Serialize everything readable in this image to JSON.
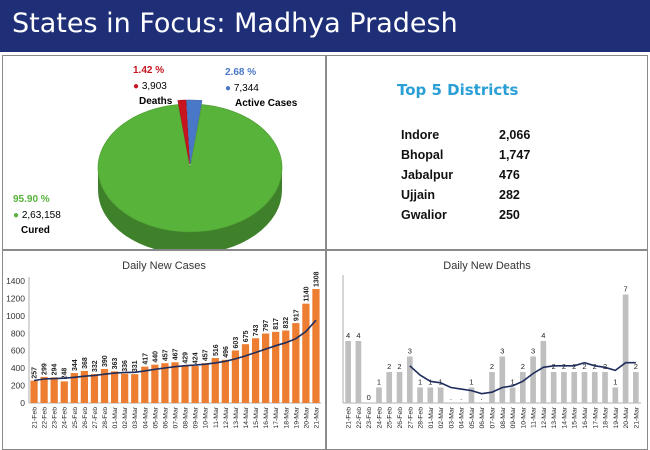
{
  "header": {
    "title": "States in Focus: Madhya Pradesh"
  },
  "pie": {
    "slices": [
      {
        "name": "Cured",
        "pct": "95.90 %",
        "count": "2,63,158",
        "value": 95.9,
        "color": "#58b33a"
      },
      {
        "name": "Deaths",
        "pct": "1.42 %",
        "count": "3,903",
        "value": 1.42,
        "color": "#c8141e"
      },
      {
        "name": "Active Cases",
        "pct": "2.68 %",
        "count": "7,344",
        "value": 2.68,
        "color": "#4a78c8"
      }
    ]
  },
  "top_districts": {
    "title": "Top 5 Districts",
    "rows": [
      {
        "name": "Indore",
        "value": "2,066"
      },
      {
        "name": "Bhopal",
        "value": "1,747"
      },
      {
        "name": "Jabalpur",
        "value": "476"
      },
      {
        "name": "Ujjain",
        "value": "282"
      },
      {
        "name": "Gwalior",
        "value": "250"
      }
    ]
  },
  "chart_data": [
    {
      "type": "bar",
      "title": "Daily New Cases",
      "categories": [
        "21-Feb",
        "22-Feb",
        "23-Feb",
        "24-Feb",
        "25-Feb",
        "26-Feb",
        "27-Feb",
        "28-Feb",
        "01-Mar",
        "02-Mar",
        "03-Mar",
        "04-Mar",
        "05-Mar",
        "06-Mar",
        "07-Mar",
        "08-Mar",
        "09-Mar",
        "10-Mar",
        "11-Mar",
        "12-Mar",
        "13-Mar",
        "14-Mar",
        "15-Mar",
        "16-Mar",
        "17-Mar",
        "18-Mar",
        "19-Mar",
        "20-Mar",
        "21-Mar"
      ],
      "values": [
        257,
        299,
        294,
        248,
        344,
        368,
        332,
        390,
        363,
        336,
        331,
        417,
        440,
        457,
        467,
        429,
        424,
        457,
        516,
        496,
        603,
        675,
        743,
        797,
        817,
        832,
        917,
        1140,
        1308
      ],
      "trend": [
        258,
        275,
        280,
        285,
        295,
        307,
        316,
        330,
        343,
        350,
        352,
        368,
        387,
        402,
        416,
        428,
        435,
        445,
        460,
        478,
        506,
        540,
        580,
        618,
        658,
        692,
        738,
        820,
        950
      ],
      "ylim": [
        0,
        1400
      ],
      "yticks": [
        0,
        200,
        400,
        600,
        800,
        1000,
        1200,
        1400
      ],
      "bar_color": "#ed7d31",
      "line_color": "#1f2d5c"
    },
    {
      "type": "bar",
      "title": "Daily New Deaths",
      "categories": [
        "21-Feb",
        "22-Feb",
        "23-Feb",
        "24-Feb",
        "25-Feb",
        "26-Feb",
        "27-Feb",
        "28-Feb",
        "01-Mar",
        "02-Mar",
        "03-Mar",
        "04-Mar",
        "05-Mar",
        "06-Mar",
        "07-Mar",
        "08-Mar",
        "09-Mar",
        "10-Mar",
        "11-Mar",
        "12-Mar",
        "13-Mar",
        "14-Mar",
        "15-Mar",
        "16-Mar",
        "17-Mar",
        "18-Mar",
        "19-Mar",
        "20-Mar",
        "21-Mar"
      ],
      "values": [
        4,
        4,
        0,
        1,
        2,
        2,
        3,
        1,
        1,
        1,
        0,
        0,
        1,
        0,
        2,
        3,
        1,
        2,
        3,
        4,
        2,
        2,
        2,
        2,
        2,
        2,
        1,
        7,
        2
      ],
      "labels": [
        "4",
        "4",
        "0",
        "1",
        "2",
        "2",
        "3",
        "1",
        "1",
        "1",
        ".",
        ".",
        "1",
        ".",
        "2",
        "3",
        "1",
        "2",
        "3",
        "4",
        "2",
        "2",
        "2",
        "2",
        "2",
        "2",
        "1",
        "7",
        "2"
      ],
      "trend": [
        null,
        null,
        null,
        null,
        null,
        null,
        2.4,
        1.8,
        1.4,
        1.3,
        1.0,
        0.9,
        0.8,
        0.6,
        0.7,
        1.0,
        1.1,
        1.4,
        1.9,
        2.3,
        2.4,
        2.4,
        2.4,
        2.6,
        2.4,
        2.3,
        2.1,
        2.6,
        2.6
      ],
      "ylim": [
        0,
        8
      ],
      "bar_color": "#bfbfbf",
      "line_color": "#1f2d5c"
    }
  ]
}
